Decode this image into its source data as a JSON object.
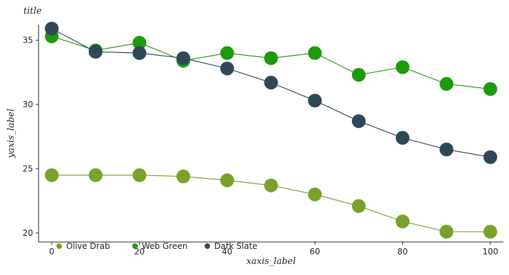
{
  "chart_data": {
    "type": "scatter",
    "title": "title",
    "xlabel": "xaxis_label",
    "ylabel": "yaxis_label",
    "xlim": [
      -3,
      103
    ],
    "ylim": [
      19.3,
      36.2
    ],
    "xticks": [
      0,
      20,
      40,
      60,
      80,
      100
    ],
    "yticks": [
      20,
      25,
      30,
      35
    ],
    "grid": false,
    "legend_position": "bottom",
    "x": [
      0,
      10,
      20,
      30,
      40,
      50,
      60,
      70,
      80,
      90,
      100
    ],
    "series": [
      {
        "name": "Olive Drab",
        "color": "#7aa12a",
        "values": [
          24.5,
          24.5,
          24.5,
          24.4,
          24.1,
          23.7,
          23.0,
          22.1,
          20.9,
          20.1,
          20.1
        ]
      },
      {
        "name": "Web Green",
        "color": "#1e9a0d",
        "values": [
          35.3,
          34.2,
          34.8,
          33.4,
          34.0,
          33.6,
          34.0,
          32.3,
          32.9,
          31.6,
          31.2
        ]
      },
      {
        "name": "Dark Slate",
        "color": "#2f4858",
        "values": [
          35.9,
          34.1,
          34.0,
          33.6,
          32.8,
          31.7,
          30.3,
          28.7,
          27.4,
          26.5,
          25.9
        ]
      }
    ]
  }
}
